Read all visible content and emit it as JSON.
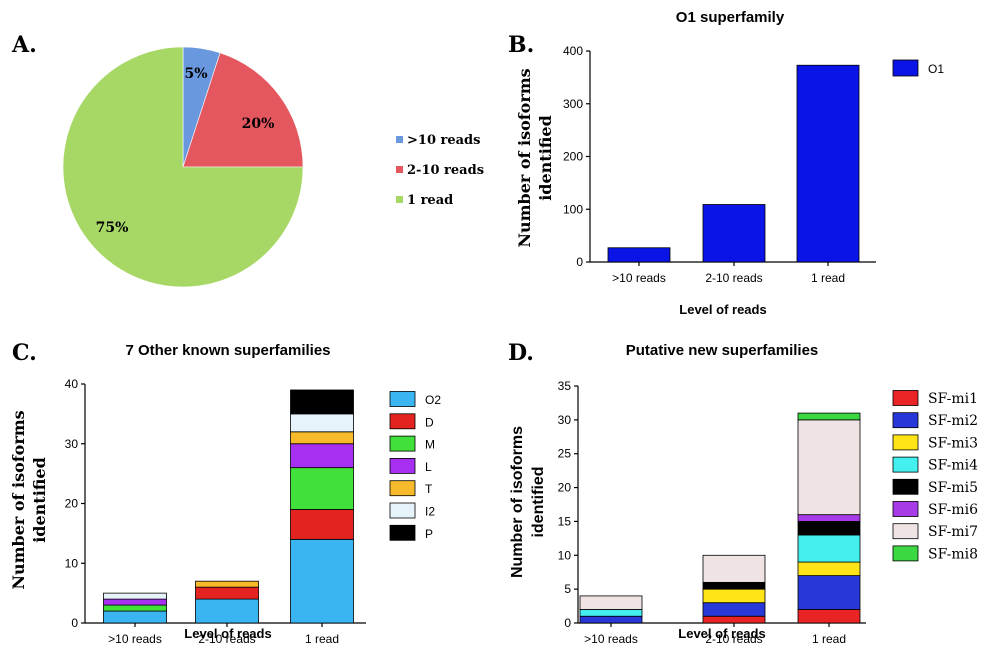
{
  "chart_data": [
    {
      "panel": "A.",
      "type": "pie",
      "labels": [
        ">10 reads",
        "2-10 reads",
        "1 read"
      ],
      "values": [
        5,
        20,
        75
      ],
      "value_labels": [
        "5%",
        "20%",
        "75%"
      ],
      "colors": [
        "#6a98de",
        "#e4575e",
        "#a7d865"
      ],
      "legend_placement": "right"
    },
    {
      "panel": "B.",
      "type": "bar",
      "title": "O1 superfamily",
      "xlabel": "Level of reads",
      "ylabel": [
        "Number of isoforms",
        "identified"
      ],
      "categories": [
        ">10 reads",
        "2-10 reads",
        "1 read"
      ],
      "series": [
        {
          "name": "O1",
          "values": [
            27,
            109,
            373
          ],
          "color": "#0a14e6"
        }
      ],
      "ylim": [
        0,
        400
      ],
      "yticks": [
        0,
        100,
        200,
        300,
        400
      ],
      "grid": false,
      "legend_placement": "top-right"
    },
    {
      "panel": "C.",
      "type": "bar",
      "stacked": true,
      "title": "7 Other known superfamilies",
      "xlabel": "Level of reads",
      "ylabel": [
        "Number of isoforms",
        "identified"
      ],
      "categories": [
        ">10 reads",
        "2-10 reads",
        "1 read"
      ],
      "series": [
        {
          "name": "O2",
          "values": [
            2,
            4,
            14
          ],
          "color": "#3bb5f2"
        },
        {
          "name": "D",
          "values": [
            0,
            2,
            5
          ],
          "color": "#e3231f"
        },
        {
          "name": "M",
          "values": [
            1,
            0,
            7
          ],
          "color": "#42e03a"
        },
        {
          "name": "L",
          "values": [
            1,
            0,
            4
          ],
          "color": "#a62ff2"
        },
        {
          "name": "T",
          "values": [
            0,
            1,
            2
          ],
          "color": "#f7ba2b"
        },
        {
          "name": "I2",
          "values": [
            1,
            0,
            3
          ],
          "color": "#e6f3fb"
        },
        {
          "name": "P",
          "values": [
            0,
            0,
            4
          ],
          "color": "#000000"
        }
      ],
      "ylim": [
        0,
        40
      ],
      "yticks": [
        0,
        10,
        20,
        30,
        40
      ],
      "grid": false,
      "legend_placement": "right"
    },
    {
      "panel": "D.",
      "type": "bar",
      "stacked": true,
      "title": "Putative new superfamilies",
      "xlabel": "Level of reads",
      "ylabel": [
        "Number of isoforms",
        "identified"
      ],
      "categories": [
        ">10 reads",
        "2-10 reads",
        "1 read"
      ],
      "series": [
        {
          "name": "SF-mi1",
          "values": [
            0,
            1,
            2
          ],
          "color": "#ea2424"
        },
        {
          "name": "SF-mi2",
          "values": [
            1,
            2,
            5
          ],
          "color": "#2737d8"
        },
        {
          "name": "SF-mi3",
          "values": [
            0,
            2,
            2
          ],
          "color": "#ffe418"
        },
        {
          "name": "SF-mi4",
          "values": [
            1,
            0,
            4
          ],
          "color": "#43f0ee"
        },
        {
          "name": "SF-mi5",
          "values": [
            0,
            1,
            2
          ],
          "color": "#000000"
        },
        {
          "name": "SF-mi6",
          "values": [
            0,
            0,
            1
          ],
          "color": "#a83be8"
        },
        {
          "name": "SF-mi7",
          "values": [
            2,
            4,
            14
          ],
          "color": "#efe3e3"
        },
        {
          "name": "SF-mi8",
          "values": [
            0,
            0,
            1
          ],
          "color": "#3bd842"
        }
      ],
      "ylim": [
        0,
        35
      ],
      "yticks": [
        0,
        5,
        10,
        15,
        20,
        25,
        30,
        35
      ],
      "grid": false,
      "legend_placement": "right"
    }
  ]
}
